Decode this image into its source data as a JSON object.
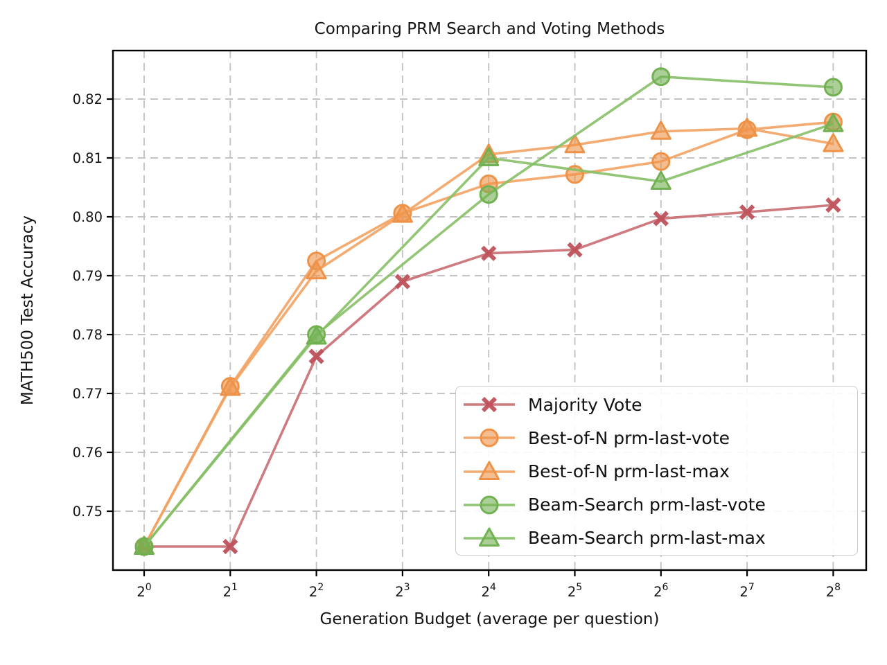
{
  "chart_data": {
    "type": "line",
    "title": "Comparing PRM Search and Voting Methods",
    "xlabel": "Generation Budget (average per question)",
    "ylabel": "MATH500 Test Accuracy",
    "x_scale": "log2",
    "grid": true,
    "grid_style": "dashed",
    "background_color": "#ffffff",
    "legend_position": "lower right",
    "x_tick_base": "2",
    "x_tick_exponents": [
      0,
      1,
      2,
      3,
      4,
      5,
      6,
      7,
      8
    ],
    "y_tick_values": [
      0.75,
      0.76,
      0.77,
      0.78,
      0.79,
      0.8,
      0.81,
      0.82
    ],
    "y_tick_labels": [
      "0.75",
      "0.76",
      "0.77",
      "0.78",
      "0.79",
      "0.80",
      "0.81",
      "0.82"
    ],
    "ylim": [
      0.7399,
      0.8283
    ],
    "xlim_log2": [
      -0.362,
      8.383
    ],
    "series": [
      {
        "name": "Majority Vote",
        "marker": "x",
        "color": "#C96C70",
        "marker_color": "#BE515A",
        "x": [
          1,
          2,
          4,
          8,
          16,
          32,
          64,
          128,
          256
        ],
        "x_exponents": [
          0,
          1,
          2,
          3,
          4,
          5,
          6,
          7,
          8
        ],
        "values": [
          0.744,
          0.744,
          0.7763,
          0.789,
          0.7938,
          0.7944,
          0.7997,
          0.8008,
          0.802
        ]
      },
      {
        "name": "Best-of-N prm-last-vote",
        "marker": "circle",
        "color": "#F2A262",
        "marker_edge": "#EE9248",
        "marker_fill": "rgba(238,146,72,0.6)",
        "x": [
          1,
          2,
          4,
          8,
          16,
          32,
          64,
          128,
          256
        ],
        "x_exponents": [
          0,
          1,
          2,
          3,
          4,
          5,
          6,
          7,
          8
        ],
        "values": [
          0.744,
          0.7712,
          0.7925,
          0.8006,
          0.8056,
          0.8072,
          0.8094,
          0.8148,
          0.8161
        ]
      },
      {
        "name": "Best-of-N prm-last-max",
        "marker": "triangle",
        "color": "#F2A262",
        "marker_edge": "#EE9248",
        "marker_fill": "rgba(238,146,72,0.6)",
        "x": [
          1,
          2,
          4,
          8,
          16,
          32,
          64,
          128,
          256
        ],
        "x_exponents": [
          0,
          1,
          2,
          3,
          4,
          5,
          6,
          7,
          8
        ],
        "values": [
          0.744,
          0.771,
          0.7908,
          0.8004,
          0.8106,
          0.8122,
          0.8145,
          0.815,
          0.8124
        ]
      },
      {
        "name": "Beam-Search prm-last-vote",
        "marker": "circle",
        "color": "#86BF66",
        "marker_edge": "#72B152",
        "marker_fill": "rgba(114,177,82,0.6)",
        "x": [
          1,
          4,
          16,
          64,
          256
        ],
        "x_exponents": [
          0,
          2,
          4,
          6,
          8
        ],
        "values": [
          0.744,
          0.78,
          0.8038,
          0.8238,
          0.822
        ]
      },
      {
        "name": "Beam-Search prm-last-max",
        "marker": "triangle",
        "color": "#86BF66",
        "marker_edge": "#72B152",
        "marker_fill": "rgba(114,177,82,0.6)",
        "x": [
          1,
          4,
          16,
          64,
          256
        ],
        "x_exponents": [
          0,
          2,
          4,
          6,
          8
        ],
        "values": [
          0.744,
          0.7797,
          0.81,
          0.806,
          0.8158
        ]
      }
    ],
    "style": {
      "grid_color": "#c3c3c3",
      "frame_color": "#000000",
      "tick_label_color": "#141414"
    }
  }
}
